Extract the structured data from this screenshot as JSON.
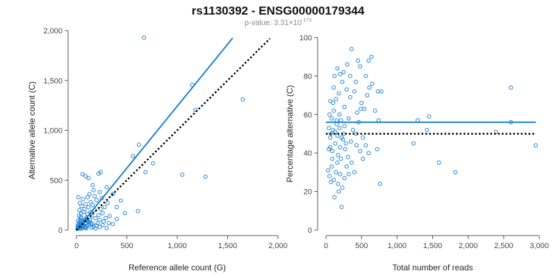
{
  "figure": {
    "title": "rs1130392 - ENSG00000179344",
    "pvalue_prefix": "p-value: 3.31×10",
    "pvalue_exponent": "-173"
  },
  "colors": {
    "points": "#1a7fd4",
    "fit": "#1a7fd4",
    "reference": "#000000",
    "axis": "#555555"
  },
  "chart_data": [
    {
      "type": "scatter",
      "xlabel": "Reference allele count (G)",
      "ylabel": "Alternative allele count (C)",
      "xlim": [
        0,
        2000
      ],
      "ylim": [
        0,
        2000
      ],
      "xticks": [
        0,
        500,
        1000,
        1500,
        2000
      ],
      "yticks": [
        0,
        500,
        1000,
        1500,
        2000
      ],
      "xtick_labels": [
        "0",
        "500",
        "1,000",
        "1,500",
        "2,000"
      ],
      "ytick_labels": [
        "0",
        "500",
        "1,000",
        "1,500",
        "2,000"
      ],
      "fit_line": {
        "x": [
          0,
          1550
        ],
        "y": [
          0,
          1925
        ],
        "style": "solid"
      },
      "reference_line": {
        "x": [
          0,
          1920
        ],
        "y": [
          0,
          1920
        ],
        "style": "dotted"
      },
      "points": [
        [
          670,
          1930
        ],
        [
          1150,
          1455
        ],
        [
          1650,
          1310
        ],
        [
          1180,
          1205
        ],
        [
          620,
          855
        ],
        [
          560,
          740
        ],
        [
          760,
          670
        ],
        [
          685,
          580
        ],
        [
          1050,
          555
        ],
        [
          1280,
          535
        ],
        [
          610,
          190
        ],
        [
          440,
          295
        ],
        [
          480,
          170
        ],
        [
          400,
          230
        ],
        [
          360,
          360
        ],
        [
          300,
          430
        ],
        [
          240,
          580
        ],
        [
          220,
          565
        ],
        [
          160,
          450
        ],
        [
          170,
          400
        ],
        [
          60,
          560
        ],
        [
          90,
          540
        ],
        [
          120,
          520
        ],
        [
          20,
          330
        ],
        [
          250,
          320
        ],
        [
          310,
          270
        ],
        [
          200,
          300
        ],
        [
          140,
          280
        ],
        [
          90,
          260
        ],
        [
          50,
          240
        ],
        [
          30,
          200
        ],
        [
          70,
          180
        ],
        [
          110,
          160
        ],
        [
          150,
          140
        ],
        [
          190,
          120
        ],
        [
          230,
          100
        ],
        [
          270,
          85
        ],
        [
          320,
          70
        ],
        [
          360,
          60
        ],
        [
          210,
          70
        ],
        [
          130,
          80
        ],
        [
          60,
          90
        ],
        [
          40,
          130
        ],
        [
          100,
          110
        ],
        [
          180,
          200
        ],
        [
          260,
          170
        ],
        [
          330,
          140
        ],
        [
          400,
          110
        ],
        [
          15,
          20
        ],
        [
          25,
          35
        ],
        [
          35,
          15
        ],
        [
          45,
          50
        ],
        [
          55,
          25
        ],
        [
          65,
          60
        ],
        [
          75,
          40
        ],
        [
          85,
          30
        ],
        [
          95,
          70
        ],
        [
          105,
          45
        ],
        [
          115,
          85
        ],
        [
          125,
          55
        ],
        [
          135,
          100
        ],
        [
          145,
          65
        ],
        [
          20,
          60
        ],
        [
          30,
          80
        ],
        [
          40,
          100
        ],
        [
          50,
          120
        ],
        [
          10,
          10
        ],
        [
          12,
          40
        ],
        [
          18,
          55
        ],
        [
          28,
          25
        ],
        [
          38,
          65
        ],
        [
          48,
          15
        ],
        [
          58,
          75
        ],
        [
          68,
          35
        ],
        [
          78,
          95
        ],
        [
          88,
          20
        ],
        [
          98,
          125
        ],
        [
          108,
          90
        ],
        [
          160,
          60
        ],
        [
          170,
          35
        ],
        [
          200,
          45
        ],
        [
          220,
          150
        ],
        [
          240,
          210
        ],
        [
          280,
          230
        ],
        [
          290,
          120
        ],
        [
          140,
          180
        ],
        [
          80,
          210
        ],
        [
          45,
          165
        ],
        [
          25,
          145
        ],
        [
          15,
          95
        ],
        [
          35,
          270
        ],
        [
          65,
          310
        ],
        [
          110,
          330
        ],
        [
          130,
          360
        ],
        [
          180,
          340
        ],
        [
          230,
          380
        ],
        [
          120,
          230
        ],
        [
          160,
          250
        ],
        [
          100,
          20
        ],
        [
          150,
          25
        ],
        [
          190,
          15
        ],
        [
          230,
          30
        ],
        [
          260,
          50
        ],
        [
          300,
          20
        ]
      ]
    },
    {
      "type": "scatter",
      "xlabel": "Total number of reads",
      "ylabel": "Percentage alternative (C)",
      "xlim": [
        0,
        3000
      ],
      "ylim": [
        0,
        100
      ],
      "xticks": [
        0,
        500,
        1000,
        1500,
        2000,
        2500,
        3000
      ],
      "yticks": [
        0,
        20,
        40,
        60,
        80,
        100
      ],
      "xtick_labels": [
        "0",
        "500",
        "1,000",
        "1,500",
        "2,000",
        "2,500",
        "3,000"
      ],
      "ytick_labels": [
        "0",
        "20",
        "40",
        "60",
        "80",
        "100"
      ],
      "fit_line": {
        "x": [
          0,
          2950
        ],
        "y": [
          56,
          56
        ],
        "style": "solid"
      },
      "reference_line": {
        "x": [
          0,
          2950
        ],
        "y": [
          50,
          50
        ],
        "style": "dotted"
      },
      "points": [
        [
          2950,
          44
        ],
        [
          2600,
          74
        ],
        [
          2600,
          56
        ],
        [
          2390,
          51
        ],
        [
          1820,
          30
        ],
        [
          1590,
          35
        ],
        [
          1450,
          59
        ],
        [
          1420,
          52
        ],
        [
          1290,
          57
        ],
        [
          1230,
          45
        ],
        [
          760,
          24
        ],
        [
          780,
          72
        ],
        [
          730,
          72
        ],
        [
          740,
          57
        ],
        [
          720,
          42
        ],
        [
          690,
          62
        ],
        [
          640,
          90
        ],
        [
          600,
          88
        ],
        [
          560,
          80
        ],
        [
          480,
          85
        ],
        [
          450,
          88
        ],
        [
          360,
          94
        ],
        [
          300,
          86
        ],
        [
          250,
          82
        ],
        [
          200,
          81
        ],
        [
          160,
          84
        ],
        [
          120,
          80
        ],
        [
          650,
          76
        ],
        [
          580,
          70
        ],
        [
          540,
          63
        ],
        [
          500,
          66
        ],
        [
          440,
          61
        ],
        [
          400,
          72
        ],
        [
          340,
          69
        ],
        [
          290,
          73
        ],
        [
          230,
          77
        ],
        [
          180,
          71
        ],
        [
          140,
          68
        ],
        [
          100,
          66
        ],
        [
          60,
          67
        ],
        [
          50,
          60
        ],
        [
          80,
          58
        ],
        [
          110,
          62
        ],
        [
          150,
          55
        ],
        [
          190,
          60
        ],
        [
          210,
          57
        ],
        [
          260,
          54
        ],
        [
          320,
          58
        ],
        [
          380,
          52
        ],
        [
          420,
          50
        ],
        [
          460,
          56
        ],
        [
          520,
          48
        ],
        [
          560,
          44
        ],
        [
          600,
          40
        ],
        [
          520,
          37
        ],
        [
          480,
          41
        ],
        [
          430,
          44
        ],
        [
          400,
          30
        ],
        [
          360,
          35
        ],
        [
          310,
          38
        ],
        [
          270,
          42
        ],
        [
          240,
          47
        ],
        [
          200,
          43
        ],
        [
          170,
          39
        ],
        [
          130,
          45
        ],
        [
          90,
          41
        ],
        [
          60,
          43
        ],
        [
          40,
          53
        ],
        [
          70,
          50
        ],
        [
          100,
          52
        ],
        [
          130,
          51
        ],
        [
          160,
          49
        ],
        [
          190,
          53
        ],
        [
          220,
          48
        ],
        [
          250,
          50
        ],
        [
          280,
          45
        ],
        [
          30,
          31
        ],
        [
          50,
          28
        ],
        [
          80,
          33
        ],
        [
          110,
          26
        ],
        [
          140,
          30
        ],
        [
          170,
          24
        ],
        [
          200,
          29
        ],
        [
          230,
          22
        ],
        [
          260,
          27
        ],
        [
          290,
          33
        ],
        [
          320,
          29
        ],
        [
          120,
          17
        ],
        [
          180,
          20
        ],
        [
          220,
          12
        ],
        [
          160,
          35
        ],
        [
          90,
          37
        ],
        [
          70,
          25
        ],
        [
          40,
          42
        ],
        [
          210,
          37
        ],
        [
          350,
          46
        ],
        [
          490,
          63
        ],
        [
          610,
          74
        ],
        [
          340,
          80
        ],
        [
          420,
          77
        ],
        [
          110,
          74
        ],
        [
          60,
          48
        ],
        [
          150,
          57
        ],
        [
          260,
          64
        ]
      ]
    }
  ]
}
